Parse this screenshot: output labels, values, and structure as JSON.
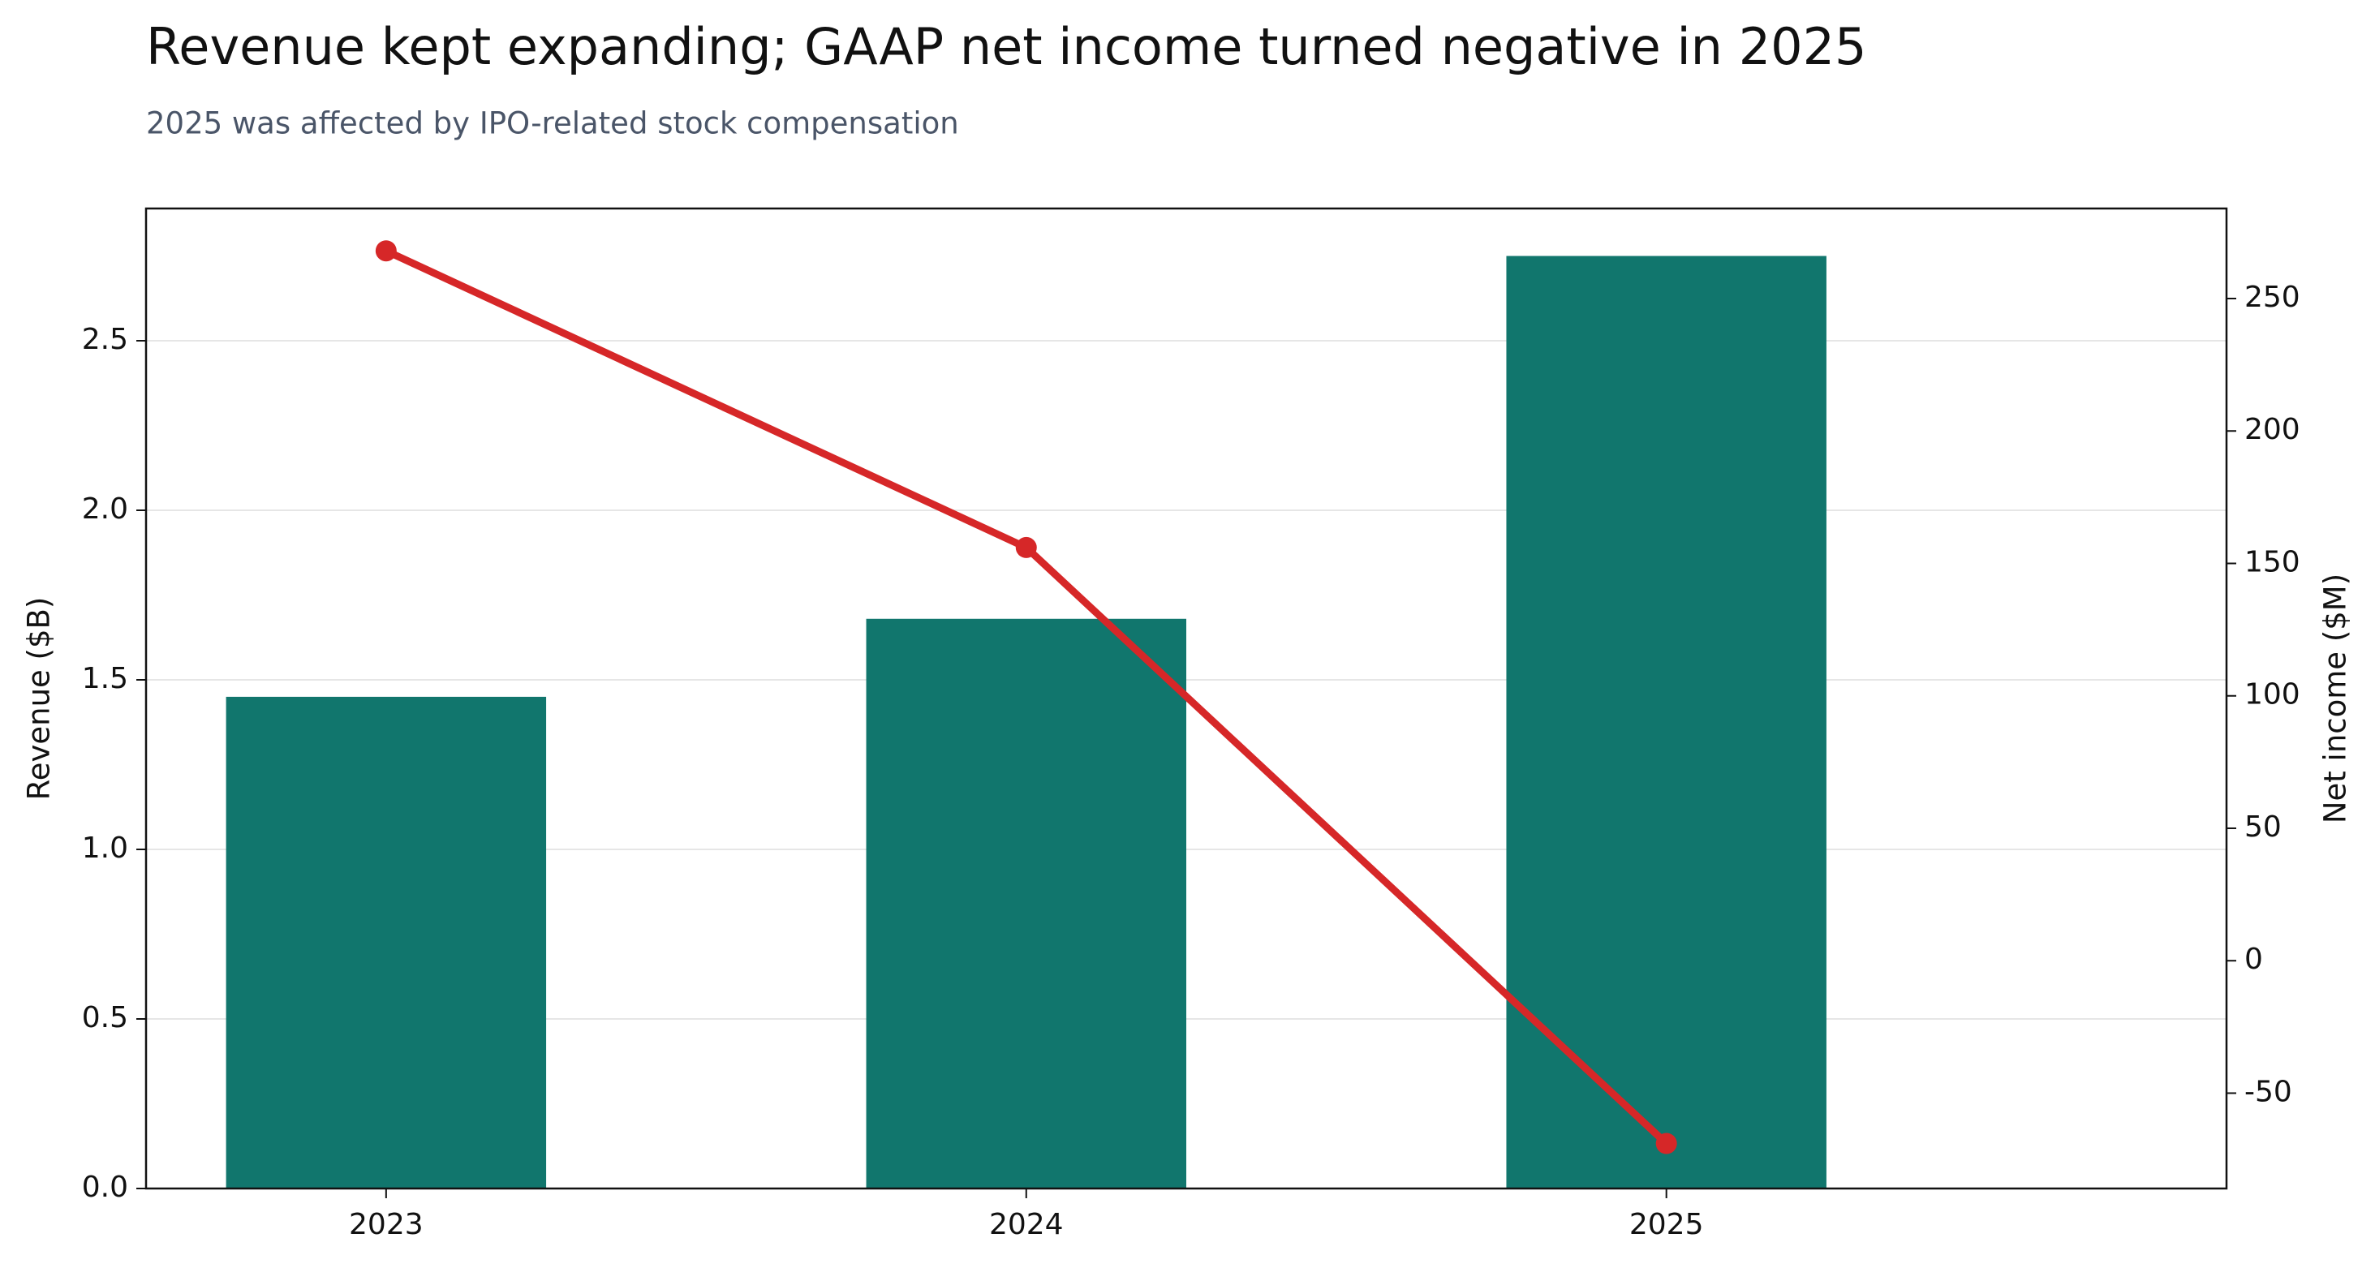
{
  "chart_data": {
    "type": "bar_line",
    "title": "Revenue kept expanding; GAAP net income turned negative in 2025",
    "subtitle": "2025 was affected by IPO-related stock compensation",
    "categories": [
      "2023",
      "2024",
      "2025"
    ],
    "series": [
      {
        "name": "Revenue ($B)",
        "type": "bar",
        "color": "#11766d",
        "values": [
          1.45,
          1.68,
          2.75
        ]
      },
      {
        "name": "Net income ($M)",
        "type": "line",
        "axis": "y2",
        "color": "#d62728",
        "values": [
          268,
          156,
          -69
        ]
      }
    ],
    "ylabel": "Revenue ($B)",
    "y2label": "Net income ($M)",
    "ylim": [
      0,
      2.89
    ],
    "yticks": [
      {
        "value": 0,
        "label": "0.0"
      },
      0.5,
      {
        "value": 1,
        "label": "1.0"
      },
      1.5,
      {
        "value": 2,
        "label": "2.0"
      },
      2.5
    ],
    "y2lim": [
      -86,
      284
    ],
    "y2ticks": [
      -50,
      0,
      50,
      100,
      150,
      200,
      250
    ],
    "grid": true
  }
}
